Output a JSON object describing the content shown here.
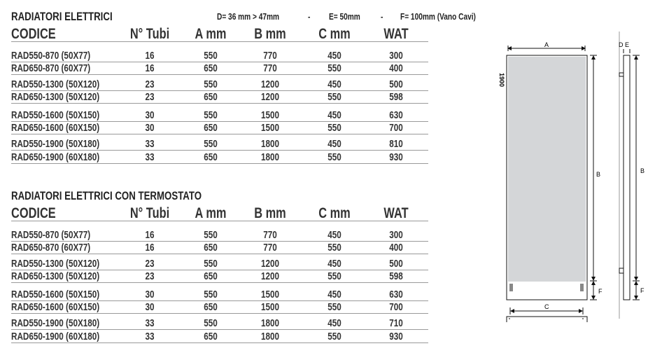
{
  "dimensions_note": {
    "d": "D= 36 mm > 47mm",
    "sep1": "-",
    "e": "E= 50mm",
    "sep2": "-",
    "f": "F= 100mm (Vano Cavi)"
  },
  "columns": [
    "CODICE",
    "N° Tubi",
    "A mm",
    "B mm",
    "C mm",
    "WAT"
  ],
  "tables": [
    {
      "title": "RADIATORI ELETTRICI",
      "rows": [
        [
          "RAD550-870 (50X77)",
          "16",
          "550",
          "770",
          "450",
          "300"
        ],
        [
          "RAD650-870 (60X77)",
          "16",
          "650",
          "770",
          "550",
          "400"
        ],
        [
          "RAD550-1300 (50X120)",
          "23",
          "550",
          "1200",
          "450",
          "500"
        ],
        [
          "RAD650-1300 (50X120)",
          "23",
          "650",
          "1200",
          "550",
          "598"
        ],
        [
          "RAD550-1600 (50X150)",
          "30",
          "550",
          "1500",
          "450",
          "630"
        ],
        [
          "RAD650-1600 (60X150)",
          "30",
          "650",
          "1500",
          "550",
          "700"
        ],
        [
          "RAD550-1900 (50X180)",
          "33",
          "550",
          "1800",
          "450",
          "810"
        ],
        [
          "RAD650-1900 (60X180)",
          "33",
          "650",
          "1800",
          "550",
          "930"
        ]
      ]
    },
    {
      "title": "RADIATORI ELETTRICI CON TERMOSTATO",
      "rows": [
        [
          "RAD550-870 (50X77)",
          "16",
          "550",
          "770",
          "450",
          "300"
        ],
        [
          "RAD650-870 (60X77)",
          "16",
          "650",
          "770",
          "550",
          "400"
        ],
        [
          "RAD550-1300 (50X120)",
          "23",
          "550",
          "1200",
          "450",
          "500"
        ],
        [
          "RAD650-1300 (50X120)",
          "23",
          "650",
          "1200",
          "550",
          "598"
        ],
        [
          "RAD550-1600 (50X150)",
          "30",
          "550",
          "1500",
          "450",
          "630"
        ],
        [
          "RAD650-1600 (60X150)",
          "30",
          "650",
          "1500",
          "550",
          "700"
        ],
        [
          "RAD550-1900 (50X180)",
          "33",
          "550",
          "1800",
          "450",
          "710"
        ],
        [
          "RAD650-1900 (60X180)",
          "33",
          "650",
          "1800",
          "550",
          "930"
        ]
      ]
    }
  ],
  "drawing": {
    "height_label": "1900",
    "a": "A",
    "b": "B",
    "c": "C",
    "d": "D",
    "e": "E",
    "f": "F",
    "b_side": "B",
    "f_side": "F",
    "panel_color": "#d4d6d8"
  }
}
